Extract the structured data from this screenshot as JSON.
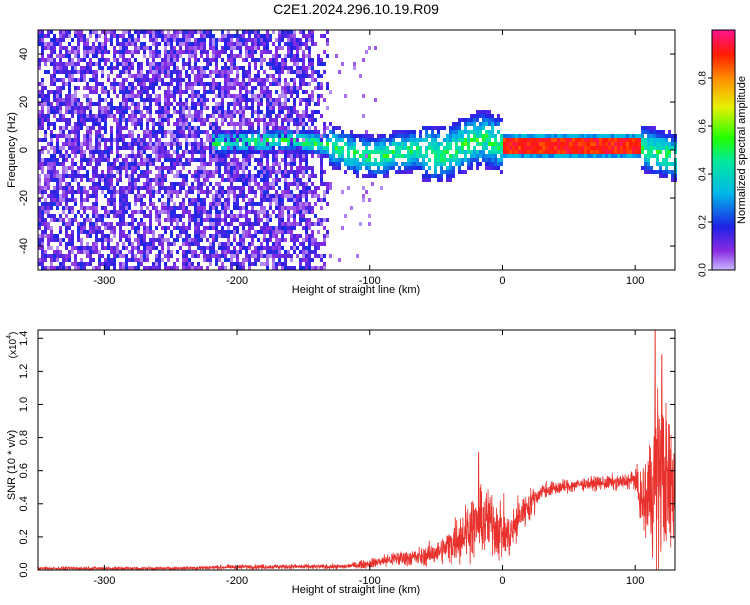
{
  "title": "C2E1.2024.296.10.19.R09",
  "chart_data": [
    {
      "type": "heatmap",
      "xlabel": "Height of straight line (km)",
      "ylabel": "Frequency (Hz)",
      "xlim": [
        -350,
        130
      ],
      "ylim": [
        -50,
        50
      ],
      "x_ticks": [
        -300,
        -200,
        -100,
        0,
        100
      ],
      "y_ticks": [
        -40,
        -20,
        0,
        20,
        40
      ],
      "colorbar": {
        "label": "Normalized spectral amplitude",
        "range": [
          0,
          1
        ],
        "ticks": [
          0.0,
          0.2,
          0.4,
          0.6,
          0.8
        ],
        "colormap": "rainbow"
      },
      "features": [
        {
          "region": "broadband noise",
          "x_from": -350,
          "x_to": -130,
          "amplitude": 0.1
        },
        {
          "region": "signal trace",
          "x_from": -220,
          "x_to": 0,
          "center_freq": 2,
          "amplitude": 0.35
        },
        {
          "region": "strong trace",
          "x_from": 0,
          "x_to": 105,
          "center_freq": 2,
          "amplitude": 0.95
        },
        {
          "region": "signal trace",
          "x_from": 105,
          "x_to": 130,
          "center_freq": 0,
          "amplitude": 0.45
        }
      ],
      "trace": [
        {
          "x": -220,
          "f": 3
        },
        {
          "x": -160,
          "f": 4
        },
        {
          "x": -130,
          "f": 2
        },
        {
          "x": -110,
          "f": -2
        },
        {
          "x": -95,
          "f": -3
        },
        {
          "x": -80,
          "f": -1
        },
        {
          "x": -65,
          "f": 0
        },
        {
          "x": -50,
          "f": -2
        },
        {
          "x": -40,
          "f": -1
        },
        {
          "x": -30,
          "f": 2
        },
        {
          "x": -15,
          "f": 5
        },
        {
          "x": -5,
          "f": 3
        },
        {
          "x": 0,
          "f": 2
        },
        {
          "x": 40,
          "f": 2
        },
        {
          "x": 100,
          "f": 2
        },
        {
          "x": 110,
          "f": 0
        },
        {
          "x": 130,
          "f": -3
        }
      ]
    },
    {
      "type": "line",
      "xlabel": "Height of straight line (km)",
      "ylabel": "SNR (10 * v/v)",
      "y_multiplier": "(x10",
      "y_exponent": "4",
      "y_multiplier_close": ")",
      "xlim": [
        -350,
        130
      ],
      "ylim": [
        0,
        1.45
      ],
      "x_ticks": [
        -300,
        -200,
        -100,
        0,
        100
      ],
      "y_ticks": [
        0.0,
        0.2,
        0.4,
        0.6,
        0.8,
        1.0,
        1.2,
        1.4
      ],
      "series": [
        {
          "color": "#e8312c",
          "envelope": [
            {
              "x": -350,
              "mean": 0.01,
              "spread": 0.01
            },
            {
              "x": -250,
              "mean": 0.01,
              "spread": 0.01
            },
            {
              "x": -190,
              "mean": 0.02,
              "spread": 0.015
            },
            {
              "x": -120,
              "mean": 0.02,
              "spread": 0.015
            },
            {
              "x": -100,
              "mean": 0.04,
              "spread": 0.03
            },
            {
              "x": -80,
              "mean": 0.07,
              "spread": 0.05
            },
            {
              "x": -60,
              "mean": 0.08,
              "spread": 0.06
            },
            {
              "x": -45,
              "mean": 0.12,
              "spread": 0.08
            },
            {
              "x": -30,
              "mean": 0.22,
              "spread": 0.18
            },
            {
              "x": -20,
              "mean": 0.28,
              "spread": 0.2
            },
            {
              "x": -10,
              "mean": 0.3,
              "spread": 0.22
            },
            {
              "x": -2,
              "mean": 0.25,
              "spread": 0.2
            },
            {
              "x": 5,
              "mean": 0.2,
              "spread": 0.15
            },
            {
              "x": 15,
              "mean": 0.35,
              "spread": 0.12
            },
            {
              "x": 30,
              "mean": 0.48,
              "spread": 0.05
            },
            {
              "x": 60,
              "mean": 0.52,
              "spread": 0.04
            },
            {
              "x": 90,
              "mean": 0.53,
              "spread": 0.05
            },
            {
              "x": 100,
              "mean": 0.55,
              "spread": 0.06
            },
            {
              "x": 105,
              "mean": 0.4,
              "spread": 0.2
            },
            {
              "x": 110,
              "mean": 0.45,
              "spread": 0.35
            },
            {
              "x": 118,
              "mean": 0.6,
              "spread": 0.6
            },
            {
              "x": 125,
              "mean": 0.5,
              "spread": 0.45
            },
            {
              "x": 130,
              "mean": 0.5,
              "spread": 0.4
            }
          ],
          "peaks": [
            {
              "x": -18,
              "y": 0.71
            },
            {
              "x": 115,
              "y": 1.45
            },
            {
              "x": 120,
              "y": 1.3
            }
          ]
        }
      ]
    }
  ]
}
